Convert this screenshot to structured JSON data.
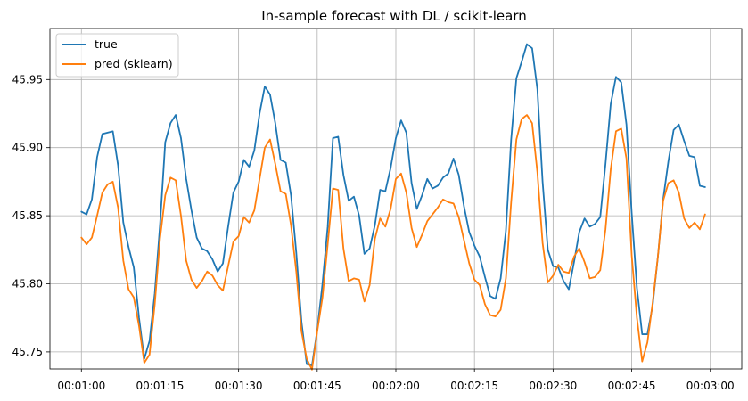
{
  "chart_data": {
    "type": "line",
    "title": "In-sample forecast with DL / scikit-learn",
    "xlabel": "",
    "ylabel": "",
    "xlim": [
      -6,
      126
    ],
    "ylim": [
      45.7375,
      45.9875
    ],
    "grid": true,
    "legend_position": "top-left",
    "x_tick_values": [
      0,
      15,
      30,
      45,
      60,
      75,
      90,
      105,
      120
    ],
    "x_tick_labels": [
      "00:01:00",
      "00:01:15",
      "00:01:30",
      "00:01:45",
      "00:02:00",
      "00:02:15",
      "00:02:30",
      "00:02:45",
      "00:03:00"
    ],
    "y_tick_values": [
      45.75,
      45.8,
      45.85,
      45.9,
      45.95
    ],
    "y_tick_labels": [
      "45.75",
      "45.80",
      "45.85",
      "45.90",
      "45.95"
    ],
    "series": [
      {
        "name": "true",
        "color": "#1f77b4",
        "values": [
          45.853,
          45.851,
          45.862,
          45.893,
          45.91,
          45.911,
          45.912,
          45.887,
          45.845,
          45.827,
          45.812,
          45.775,
          45.745,
          45.758,
          45.793,
          45.843,
          45.904,
          45.918,
          45.924,
          45.907,
          45.877,
          45.854,
          45.834,
          45.826,
          45.824,
          45.818,
          45.809,
          45.815,
          45.842,
          45.867,
          45.875,
          45.891,
          45.886,
          45.898,
          45.925,
          45.945,
          45.939,
          45.918,
          45.891,
          45.889,
          45.865,
          45.823,
          45.772,
          45.741,
          45.74,
          45.766,
          45.8,
          45.842,
          45.907,
          45.908,
          45.88,
          45.861,
          45.864,
          45.85,
          45.822,
          45.826,
          45.843,
          45.869,
          45.868,
          45.885,
          45.907,
          45.92,
          45.911,
          45.874,
          45.855,
          45.865,
          45.877,
          45.87,
          45.872,
          45.878,
          45.881,
          45.892,
          45.88,
          45.857,
          45.838,
          45.828,
          45.82,
          45.805,
          45.791,
          45.789,
          45.804,
          45.839,
          45.906,
          45.951,
          45.963,
          45.976,
          45.973,
          45.943,
          45.875,
          45.825,
          45.813,
          45.812,
          45.802,
          45.796,
          45.816,
          45.838,
          45.848,
          45.842,
          45.844,
          45.849,
          45.888,
          45.932,
          45.952,
          45.948,
          45.917,
          45.852,
          45.797,
          45.763,
          45.763,
          45.784,
          45.82,
          45.862,
          45.89,
          45.913,
          45.917,
          45.905,
          45.894,
          45.893,
          45.872,
          45.871
        ]
      },
      {
        "name": "pred (sklearn)",
        "color": "#ff7f0e",
        "values": [
          45.834,
          45.829,
          45.834,
          45.85,
          45.867,
          45.873,
          45.875,
          45.856,
          45.817,
          45.796,
          45.79,
          45.769,
          45.742,
          45.748,
          45.785,
          45.833,
          45.865,
          45.878,
          45.876,
          45.85,
          45.817,
          45.803,
          45.797,
          45.802,
          45.809,
          45.806,
          45.799,
          45.795,
          45.813,
          45.831,
          45.835,
          45.849,
          45.845,
          45.854,
          45.877,
          45.9,
          45.906,
          45.888,
          45.868,
          45.866,
          45.843,
          45.809,
          45.765,
          45.745,
          45.737,
          45.765,
          45.79,
          45.829,
          45.87,
          45.869,
          45.826,
          45.802,
          45.804,
          45.803,
          45.787,
          45.799,
          45.833,
          45.848,
          45.842,
          45.855,
          45.877,
          45.881,
          45.867,
          45.841,
          45.827,
          45.836,
          45.846,
          45.851,
          45.856,
          45.862,
          45.86,
          45.859,
          45.849,
          45.832,
          45.815,
          45.803,
          45.799,
          45.785,
          45.777,
          45.776,
          45.781,
          45.804,
          45.86,
          45.906,
          45.921,
          45.924,
          45.918,
          45.882,
          45.83,
          45.801,
          45.806,
          45.814,
          45.809,
          45.808,
          45.82,
          45.826,
          45.816,
          45.804,
          45.805,
          45.81,
          45.84,
          45.884,
          45.912,
          45.914,
          45.892,
          45.821,
          45.775,
          45.743,
          45.757,
          45.786,
          45.82,
          45.861,
          45.874,
          45.876,
          45.867,
          45.848,
          45.841,
          45.845,
          45.84,
          45.851
        ]
      }
    ]
  }
}
